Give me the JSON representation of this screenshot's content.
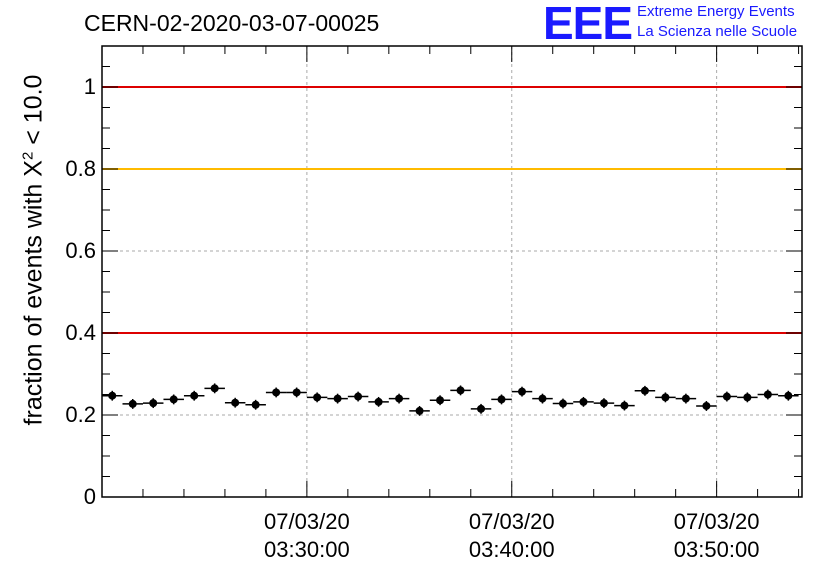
{
  "header": {
    "title": "CERN-02-2020-03-07-00025",
    "logo_text": "EEE",
    "logo_line1": "Extreme Energy Events",
    "logo_line2": "La Scienza nelle Scuole",
    "logo_color": "#1a1aff"
  },
  "chart_data": {
    "type": "scatter",
    "ylabel_prefix": "fraction of events with X",
    "ylabel_sup": "2",
    "ylabel_suffix": " < 10.0",
    "ylim": [
      0,
      1.1
    ],
    "yticks": [
      {
        "value": 0,
        "label": "0"
      },
      {
        "value": 0.2,
        "label": "0.2"
      },
      {
        "value": 0.4,
        "label": "0.4"
      },
      {
        "value": 0.6,
        "label": "0.6"
      },
      {
        "value": 0.8,
        "label": "0.8"
      },
      {
        "value": 1,
        "label": "1"
      }
    ],
    "xlim": [
      "03:20:00",
      "03:54:10"
    ],
    "xticks": [
      {
        "time": "03:30:00",
        "date": "07/03/20",
        "label": "03:30:00"
      },
      {
        "time": "03:40:00",
        "date": "07/03/20",
        "label": "03:40:00"
      },
      {
        "time": "03:50:00",
        "date": "07/03/20",
        "label": "03:50:00"
      }
    ],
    "grid": true,
    "reference_lines": [
      {
        "y": 1.0,
        "color": "#dd0000"
      },
      {
        "y": 0.8,
        "color": "#ffbb00"
      },
      {
        "y": 0.4,
        "color": "#dd0000"
      }
    ],
    "bin_width_seconds": 60,
    "points": [
      {
        "x": "03:20:30",
        "y": 0.247
      },
      {
        "x": "03:21:30",
        "y": 0.227
      },
      {
        "x": "03:22:30",
        "y": 0.229
      },
      {
        "x": "03:23:30",
        "y": 0.238
      },
      {
        "x": "03:24:30",
        "y": 0.247
      },
      {
        "x": "03:25:30",
        "y": 0.265
      },
      {
        "x": "03:26:30",
        "y": 0.23
      },
      {
        "x": "03:27:30",
        "y": 0.225
      },
      {
        "x": "03:28:30",
        "y": 0.255
      },
      {
        "x": "03:29:30",
        "y": 0.255
      },
      {
        "x": "03:30:30",
        "y": 0.243
      },
      {
        "x": "03:31:30",
        "y": 0.24
      },
      {
        "x": "03:32:30",
        "y": 0.245
      },
      {
        "x": "03:33:30",
        "y": 0.232
      },
      {
        "x": "03:34:30",
        "y": 0.24
      },
      {
        "x": "03:35:30",
        "y": 0.21
      },
      {
        "x": "03:36:30",
        "y": 0.236
      },
      {
        "x": "03:37:30",
        "y": 0.26
      },
      {
        "x": "03:38:30",
        "y": 0.215
      },
      {
        "x": "03:39:30",
        "y": 0.238
      },
      {
        "x": "03:40:30",
        "y": 0.257
      },
      {
        "x": "03:41:30",
        "y": 0.24
      },
      {
        "x": "03:42:30",
        "y": 0.228
      },
      {
        "x": "03:43:30",
        "y": 0.232
      },
      {
        "x": "03:44:30",
        "y": 0.229
      },
      {
        "x": "03:45:30",
        "y": 0.223
      },
      {
        "x": "03:46:30",
        "y": 0.259
      },
      {
        "x": "03:47:30",
        "y": 0.243
      },
      {
        "x": "03:48:30",
        "y": 0.24
      },
      {
        "x": "03:49:30",
        "y": 0.222
      },
      {
        "x": "03:50:30",
        "y": 0.245
      },
      {
        "x": "03:51:30",
        "y": 0.243
      },
      {
        "x": "03:52:30",
        "y": 0.25
      },
      {
        "x": "03:53:30",
        "y": 0.247
      }
    ],
    "y_error": 0.012
  }
}
